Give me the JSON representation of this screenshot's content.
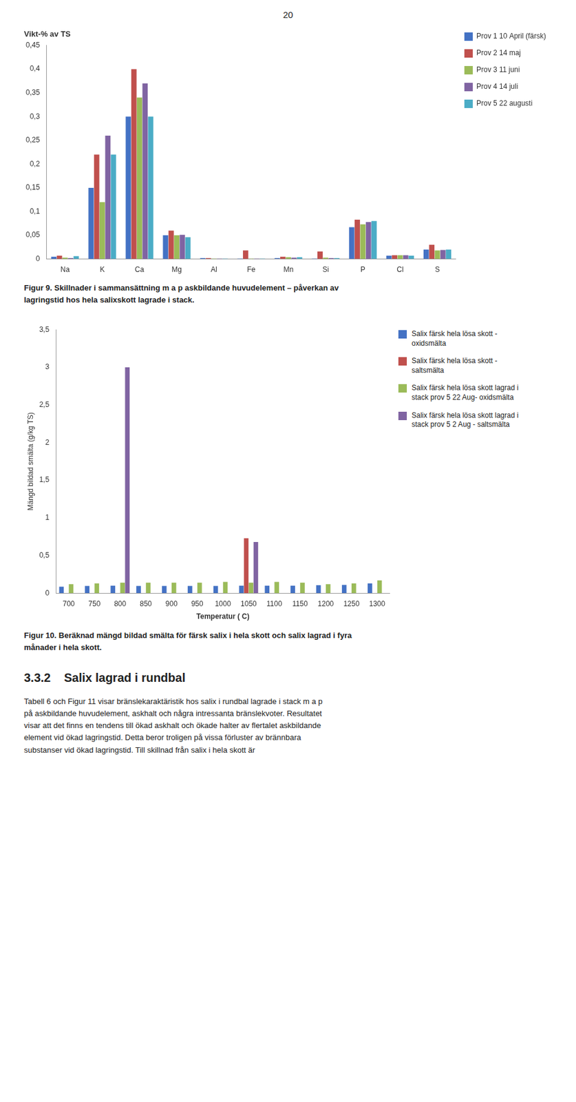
{
  "page_number": "20",
  "chart_data": [
    {
      "type": "bar",
      "title": "Vikt-% av TS",
      "categories": [
        "Na",
        "K",
        "Ca",
        "Mg",
        "Al",
        "Fe",
        "Mn",
        "Si",
        "P",
        "Cl",
        "S"
      ],
      "series": [
        {
          "name": "Prov 1 10 April (färsk)",
          "color": "#4472C4",
          "values": [
            0.005,
            0.15,
            0.3,
            0.05,
            0.002,
            0.001,
            0.002,
            0.001,
            0.067,
            0.007,
            0.02
          ]
        },
        {
          "name": "Prov 2 14 maj",
          "color": "#C0504D",
          "values": [
            0.007,
            0.22,
            0.4,
            0.06,
            0.002,
            0.018,
            0.005,
            0.016,
            0.083,
            0.008,
            0.03
          ]
        },
        {
          "name": "Prov 3 11 juni",
          "color": "#9BBB59",
          "values": [
            0.003,
            0.12,
            0.34,
            0.05,
            0.001,
            0.001,
            0.004,
            0.003,
            0.073,
            0.008,
            0.018
          ]
        },
        {
          "name": "Prov 4 14 juli",
          "color": "#8064A2",
          "values": [
            0.002,
            0.26,
            0.37,
            0.051,
            0.001,
            0.001,
            0.003,
            0.002,
            0.078,
            0.008,
            0.019
          ]
        },
        {
          "name": "Prov 5 22 augusti",
          "color": "#4BACC6",
          "values": [
            0.006,
            0.22,
            0.3,
            0.046,
            0.001,
            0.001,
            0.004,
            0.002,
            0.08,
            0.007,
            0.02
          ]
        }
      ],
      "ylim": [
        0,
        0.45
      ],
      "yticks": [
        0,
        {
          "value": 0.05,
          "label": "0,05"
        },
        {
          "value": 0.1,
          "label": "0,1"
        },
        {
          "value": 0.15,
          "label": "0,15"
        },
        {
          "value": 0.2,
          "label": "0,2"
        },
        {
          "value": 0.25,
          "label": "0,25"
        },
        {
          "value": 0.3,
          "label": "0,3"
        },
        {
          "value": 0.35,
          "label": "0,35"
        },
        {
          "value": 0.4,
          "label": "0,4"
        },
        {
          "value": 0.45,
          "label": "0,45"
        }
      ],
      "grid": false,
      "legend": "right",
      "caption": "Figur 9. Skillnader i sammansättning m a p askbildande huvudelement – påverkan av\nlagringstid hos hela salixskott lagrade i stack."
    },
    {
      "type": "bar",
      "x_label": "Temperatur ( C)",
      "y_label": "Mängd bildad smälta (g/kg TS)",
      "categories": [
        "700",
        "750",
        "800",
        "850",
        "900",
        "950",
        "1000",
        "1050",
        "1100",
        "1150",
        "1200",
        "1250",
        "1300"
      ],
      "series": [
        {
          "name": "Salix färsk hela lösa skott -\noxidsmälta",
          "color": "#4472C4",
          "values": [
            0.085,
            0.095,
            0.1,
            0.095,
            0.095,
            0.095,
            0.095,
            0.1,
            0.1,
            0.1,
            0.105,
            0.11,
            0.13
          ]
        },
        {
          "name": "Salix färsk hela lösa skott -\nsaltsmälta",
          "color": "#C0504D",
          "values": [
            0.0,
            0.0,
            0.0,
            0.0,
            0.0,
            0.0,
            0.0,
            0.73,
            0.0,
            0.0,
            0.0,
            0.0,
            0.0
          ]
        },
        {
          "name": "Salix färsk hela lösa skott lagrad i\nstack prov 5  22 Aug- oxidsmälta",
          "color": "#9BBB59",
          "values": [
            0.12,
            0.13,
            0.14,
            0.14,
            0.14,
            0.14,
            0.15,
            0.14,
            0.15,
            0.14,
            0.12,
            0.13,
            0.17
          ]
        },
        {
          "name": "Salix färsk hela lösa skott lagrad i\nstack prov 5 2 Aug - saltsmälta",
          "color": "#8064A2",
          "values": [
            0.0,
            0.0,
            3.0,
            0.0,
            0.0,
            0.0,
            0.0,
            0.68,
            0.0,
            0.0,
            0.0,
            0.0,
            0.0
          ]
        }
      ],
      "ylim": [
        0,
        3.5
      ],
      "yticks": [
        0,
        {
          "value": 0.5,
          "label": "0,5"
        },
        1,
        {
          "value": 1.5,
          "label": "1,5"
        },
        2,
        {
          "value": 2.5,
          "label": "2,5"
        },
        3,
        {
          "value": 3.5,
          "label": "3,5"
        }
      ],
      "grid": false,
      "legend": "right",
      "caption": "Figur 10. Beräknad mängd bildad smälta för färsk salix i hela skott och salix lagrad i fyra\nmånader i hela skott."
    }
  ],
  "section_title": "3.3.2    Salix lagrad i rundbal",
  "body_text": "Tabell 6 och Figur 11 visar bränslekaraktäristik hos salix i rundbal lagrade i stack m a p\npå askbildande huvudelement, askhalt och några intressanta bränslekvoter. Resultatet\nvisar att det finns en tendens till ökad askhalt och ökade halter av flertalet askbildande\nelement vid ökad lagringstid. Detta beror troligen på vissa förluster av brännbara\nsubstanser vid ökad lagringstid. Till skillnad från salix i hela skott är"
}
